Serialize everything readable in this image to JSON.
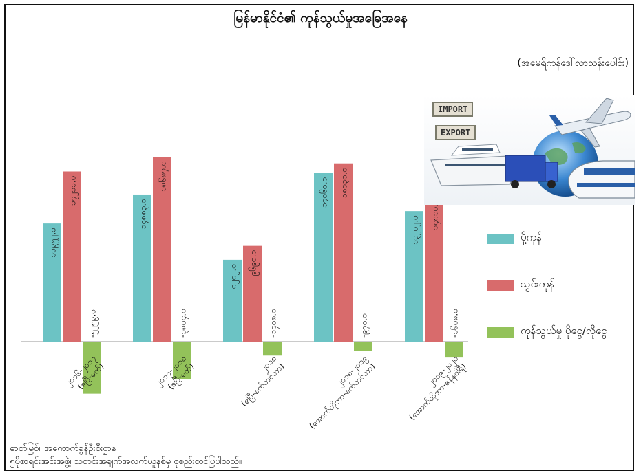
{
  "title": "မြန်မာနိုင်ငံ၏ ကုန်သွယ်မှုအခြေအနေ",
  "unit_label": "(အမေရိကန်ဒေါ်လာသန်းပေါင်း)",
  "illustration": {
    "stamp_import": "IMPORT",
    "stamp_export": "EXPORT"
  },
  "legend": [
    {
      "label": "ပို့ကုန်",
      "color": "#6cc3c4"
    },
    {
      "label": "သွင်းကုန်",
      "color": "#d86b6c"
    },
    {
      "label": "ကုန်သွယ်မှု ပိုငွေ/လိုငွေ",
      "color": "#93c25a"
    }
  ],
  "source": {
    "line1": "ဓာတ်မြစ်။ အကောက်ခွန်ဦးစီးဌာန",
    "line2": "၅ပိုစာရင်းအင်းအဖွဲ့၊ သတင်းအချက်အလက်ယူနစ်မှ စုစည်းတင်ပြပါသည်။"
  },
  "chart_data": {
    "type": "bar",
    "title": "မြန်မာနိုင်ငံ၏ ကုန်သွယ်မှုအခြေအနေ",
    "unit": "(အမေရိကန်ဒေါ်လာသန်းပေါင်း)",
    "categories": [
      "၂၀၁၆-၂၀၁၇ (ဧပြီ-မတ်)",
      "၂၀၁၇-၂၀၁၈ (ဧပြီ-မတ်)",
      "၂၀၁၈ (ဧပြီ-စက်တင်ဘာ)",
      "၂၀၁၈-၂၀၁၉ (အောက်တိုဘာ-စက်တင်ဘာ)",
      "၂၀၁၉-၂၀၂၀ (အောက်တိုဘာ-ဇန်နဝါရီ)"
    ],
    "series": [
      {
        "name": "ပို့ကုန်",
        "color": "#6cc3c4",
        "values": [
          11952.0,
          14883.0,
          8282.0,
          17060.0,
          13202.0
        ]
      },
      {
        "name": "သွင်းကုန်",
        "color": "#d86b6c",
        "values": [
          17211.0,
          18687.0,
          9690.0,
          18030.0,
          14810.0
        ]
      },
      {
        "name": "ကုန်သွယ်မှု ပိုငွေ/လိုငွေ",
        "color": "#93c25a",
        "values": [
          -5259.0,
          -3804.0,
          -1408.0,
          -970.0,
          -1608.0
        ]
      }
    ],
    "value_labels": [
      [
        "၁၁၉၅၂.၀",
        "၁၇၂၁၁.၀",
        "-၅၂၅၉.၀"
      ],
      [
        "၁၄၈၈၃.၀",
        "၁၈၆၈၇.၀",
        "-၃၈၀၄.၀"
      ],
      [
        "၈၂၈၂.၀",
        "၉၆၉၀.၀",
        "-၁၄၀၈.၀"
      ],
      [
        "၁၇၀၆၀.၀",
        "၁၈၀၃၀.၀",
        "-၉၇၀.၀"
      ],
      [
        "၁၃၂၀၂.၀",
        "၁၄၈၁၀.၀",
        "-၁၆၀၈.၀"
      ]
    ],
    "ylim": [
      -5300,
      21000
    ],
    "grid": false,
    "legend_position": "right"
  }
}
